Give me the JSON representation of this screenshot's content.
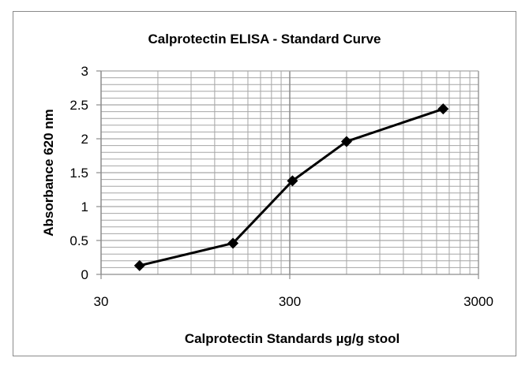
{
  "chart_data": {
    "type": "scatter",
    "title": "Calprotectin ELISA - Standard Curve",
    "xlabel": "Calprotectin Standards µg/g stool",
    "ylabel": "Absorbance 620 nm",
    "x_scale": "log",
    "xlim": [
      30,
      3000
    ],
    "ylim": [
      0,
      3
    ],
    "x_ticks": [
      "30",
      "300",
      "3000"
    ],
    "y_ticks": [
      "0",
      "0.5",
      "1",
      "1.5",
      "2",
      "2.5",
      "3"
    ],
    "grid": true,
    "legend": "none",
    "marker": "diamond",
    "line": "straight",
    "series": [
      {
        "x": [
          48,
          150,
          310,
          600,
          1950
        ],
        "y": [
          0.13,
          0.46,
          1.38,
          1.96,
          2.44
        ]
      }
    ],
    "colors": {
      "line": "#000000",
      "grid": "#a6a6a6",
      "frame": "#8a8a8a"
    }
  }
}
